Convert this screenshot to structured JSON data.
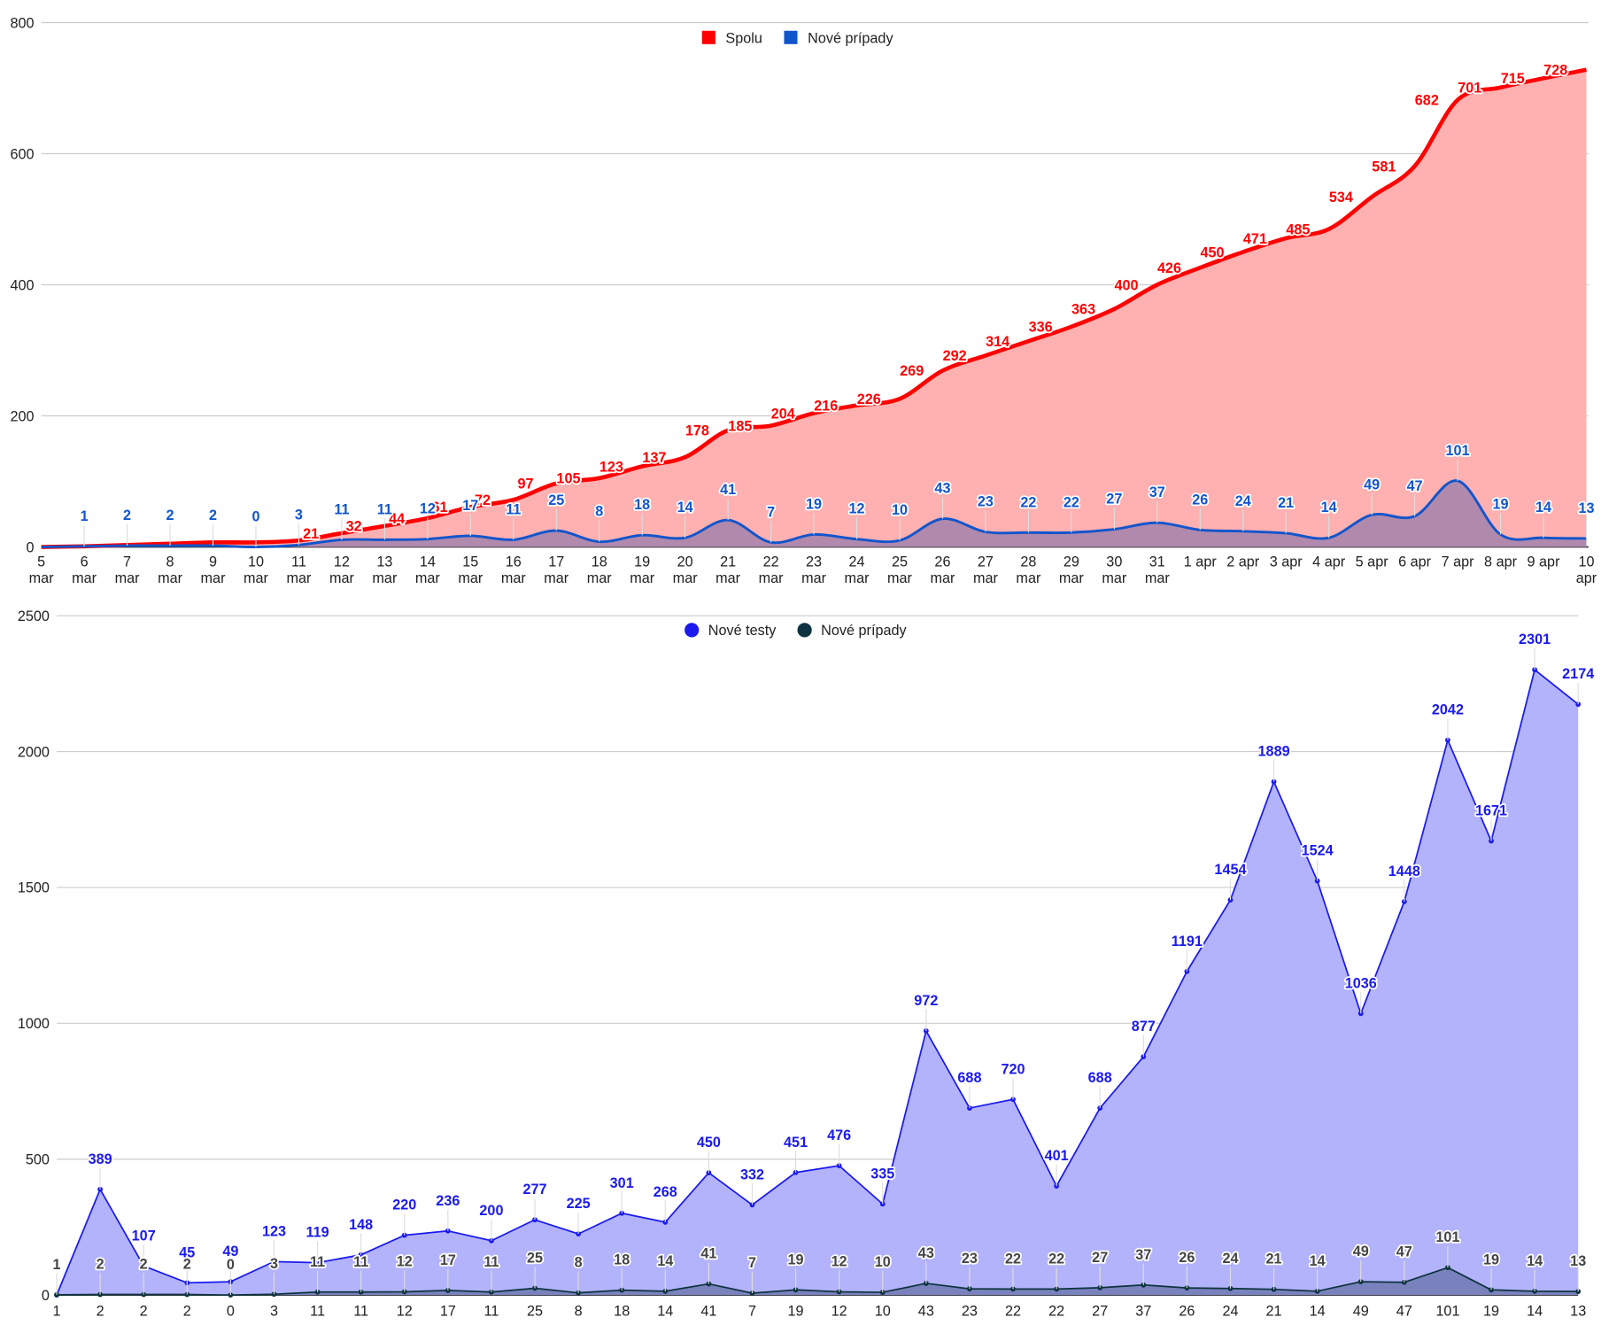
{
  "chart_data": [
    {
      "type": "area",
      "title": "",
      "xlabel": "",
      "ylabel": "",
      "ylim": [
        0,
        800
      ],
      "yticks": [
        "0",
        "200",
        "400",
        "600",
        "800"
      ],
      "grid": true,
      "legend_position": "top-center",
      "categories": [
        [
          "5",
          "mar"
        ],
        [
          "6",
          "mar"
        ],
        [
          "7",
          "mar"
        ],
        [
          "8",
          "mar"
        ],
        [
          "9",
          "mar"
        ],
        [
          "10",
          "mar"
        ],
        [
          "11",
          "mar"
        ],
        [
          "12",
          "mar"
        ],
        [
          "13",
          "mar"
        ],
        [
          "14",
          "mar"
        ],
        [
          "15",
          "mar"
        ],
        [
          "16",
          "mar"
        ],
        [
          "17",
          "mar"
        ],
        [
          "18",
          "mar"
        ],
        [
          "19",
          "mar"
        ],
        [
          "20",
          "mar"
        ],
        [
          "21",
          "mar"
        ],
        [
          "22",
          "mar"
        ],
        [
          "23",
          "mar"
        ],
        [
          "24",
          "mar"
        ],
        [
          "25",
          "mar"
        ],
        [
          "26",
          "mar"
        ],
        [
          "27",
          "mar"
        ],
        [
          "28",
          "mar"
        ],
        [
          "29",
          "mar"
        ],
        [
          "30",
          "mar"
        ],
        [
          "31",
          "mar"
        ],
        [
          "1 apr",
          ""
        ],
        [
          "2 apr",
          ""
        ],
        [
          "3 apr",
          ""
        ],
        [
          "4 apr",
          ""
        ],
        [
          "5 apr",
          ""
        ],
        [
          "6 apr",
          ""
        ],
        [
          "7 apr",
          ""
        ],
        [
          "8 apr",
          ""
        ],
        [
          "9 apr",
          ""
        ],
        [
          "10",
          "apr"
        ]
      ],
      "series": [
        {
          "name": "Spolu",
          "color": "#ff0000",
          "fill": "#ffb0b0",
          "values": [
            0,
            1,
            3,
            5,
            7,
            7,
            10,
            21,
            32,
            44,
            61,
            72,
            97,
            105,
            123,
            137,
            178,
            185,
            204,
            216,
            226,
            269,
            292,
            314,
            336,
            363,
            400,
            426,
            450,
            471,
            485,
            534,
            581,
            682,
            701,
            715,
            728
          ],
          "labels": [
            null,
            null,
            null,
            null,
            null,
            null,
            null,
            "21",
            "32",
            "44",
            "61",
            "72",
            "97",
            "105",
            "123",
            "137",
            "178",
            "185",
            "204",
            "216",
            "226",
            "269",
            "292",
            "314",
            "336",
            "363",
            "400",
            "426",
            "450",
            "471",
            "485",
            "534",
            "581",
            "682",
            "701",
            "715",
            "728"
          ]
        },
        {
          "name": "Nové prípady",
          "color": "#1155cc",
          "fill": "rgba(80,90,170,0.45)",
          "values": [
            0,
            1,
            2,
            2,
            2,
            0,
            3,
            11,
            11,
            12,
            17,
            11,
            25,
            8,
            18,
            14,
            41,
            7,
            19,
            12,
            10,
            43,
            23,
            22,
            22,
            27,
            37,
            26,
            24,
            21,
            14,
            49,
            47,
            101,
            19,
            14,
            13
          ],
          "labels": [
            null,
            "1",
            "2",
            "2",
            "2",
            "0",
            "3",
            "11",
            "11",
            "12",
            "17",
            "11",
            "25",
            "8",
            "18",
            "14",
            "41",
            "7",
            "19",
            "12",
            "10",
            "43",
            "23",
            "22",
            "22",
            "27",
            "37",
            "26",
            "24",
            "21",
            "14",
            "49",
            "47",
            "101",
            "19",
            "14",
            "13"
          ]
        }
      ]
    },
    {
      "type": "area",
      "title": "",
      "xlabel": "",
      "ylabel": "",
      "ylim": [
        0,
        2500
      ],
      "yticks": [
        "0",
        "500",
        "1000",
        "1500",
        "2000",
        "2500"
      ],
      "grid": true,
      "legend_position": "top-center",
      "categories": [
        "1",
        "2",
        "2",
        "2",
        "0",
        "3",
        "11",
        "11",
        "12",
        "17",
        "11",
        "25",
        "8",
        "18",
        "14",
        "41",
        "7",
        "19",
        "12",
        "10",
        "43",
        "23",
        "22",
        "22",
        "27",
        "37",
        "26",
        "24",
        "21",
        "14",
        "49",
        "47",
        "101",
        "19",
        "14",
        "13"
      ],
      "series": [
        {
          "name": "Nové testy",
          "color": "#1a1aee",
          "fill": "#b3b3fb",
          "values": [
            0,
            389,
            107,
            45,
            49,
            123,
            119,
            148,
            220,
            236,
            200,
            277,
            225,
            301,
            268,
            450,
            332,
            451,
            476,
            335,
            972,
            688,
            720,
            401,
            688,
            877,
            1191,
            1454,
            1889,
            1524,
            1036,
            1448,
            2042,
            1671,
            2301,
            2174
          ],
          "labels": [
            null,
            "389",
            "107",
            "45",
            "49",
            "123",
            "119",
            "148",
            "220",
            "236",
            "200",
            "277",
            "225",
            "301",
            "268",
            "450",
            "332",
            "451",
            "476",
            "335",
            "972",
            "688",
            "720",
            "401",
            "688",
            "877",
            "1191",
            "1454",
            "1889",
            "1524",
            "1036",
            "1448",
            "2042",
            "1671",
            "2301",
            "2174"
          ]
        },
        {
          "name": "Nové prípady",
          "color": "#0d3340",
          "fill": "rgba(50,70,110,0.45)",
          "values": [
            1,
            2,
            2,
            2,
            0,
            3,
            11,
            11,
            12,
            17,
            11,
            25,
            8,
            18,
            14,
            41,
            7,
            19,
            12,
            10,
            43,
            23,
            22,
            22,
            27,
            37,
            26,
            24,
            21,
            14,
            49,
            47,
            101,
            19,
            14,
            13
          ],
          "labels": [
            "1",
            "2",
            "2",
            "2",
            "0",
            "3",
            "11",
            "11",
            "12",
            "17",
            "11",
            "25",
            "8",
            "18",
            "14",
            "41",
            "7",
            "19",
            "12",
            "10",
            "43",
            "23",
            "22",
            "22",
            "27",
            "37",
            "26",
            "24",
            "21",
            "14",
            "49",
            "47",
            "101",
            "19",
            "14",
            "13"
          ]
        }
      ]
    }
  ]
}
